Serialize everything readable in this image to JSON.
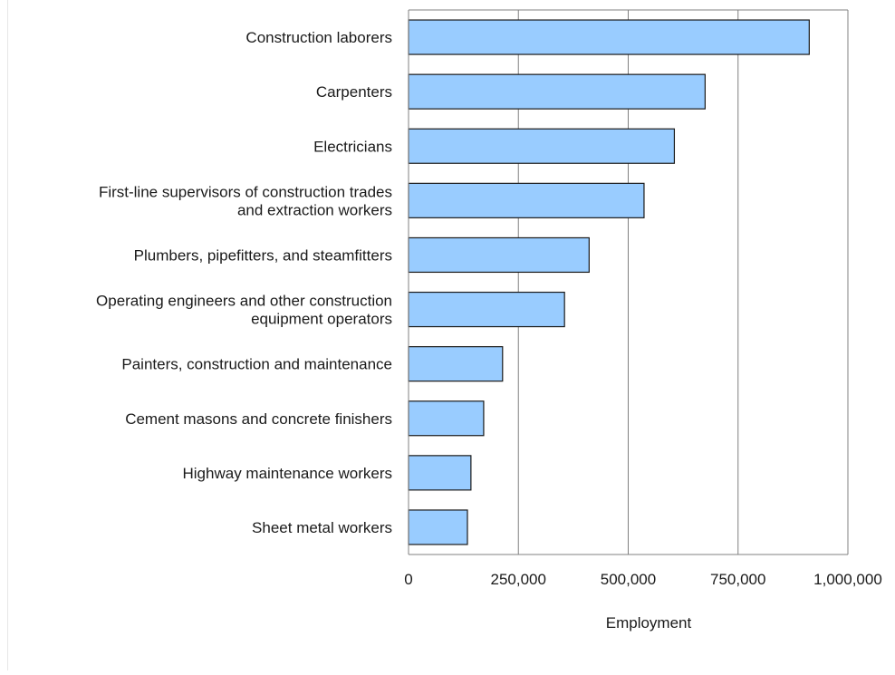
{
  "chart_data": {
    "type": "bar",
    "orientation": "horizontal",
    "categories": [
      [
        "Construction laborers"
      ],
      [
        "Carpenters"
      ],
      [
        "Electricians"
      ],
      [
        "First-line supervisors of construction trades",
        "and extraction workers"
      ],
      [
        "Plumbers, pipefitters, and steamfitters"
      ],
      [
        "Operating engineers and other construction",
        "equipment operators"
      ],
      [
        "Painters, construction and maintenance"
      ],
      [
        "Cement masons and concrete finishers"
      ],
      [
        "Highway maintenance workers"
      ],
      [
        "Sheet metal workers"
      ]
    ],
    "values": [
      912000,
      675000,
      605000,
      536000,
      411000,
      355000,
      214000,
      171000,
      142000,
      134000
    ],
    "xlabel": "Employment",
    "xlim": [
      0,
      1000000
    ],
    "xticks": [
      0,
      250000,
      500000,
      750000,
      1000000
    ],
    "xtick_labels": [
      "0",
      "250,000",
      "500,000",
      "750,000",
      "1,000,000"
    ],
    "grid": "vertical",
    "colors": {
      "bar_fill": "#99ccff",
      "bar_stroke": "#1a1a1a",
      "grid": "#808080",
      "axis": "#808080"
    }
  }
}
